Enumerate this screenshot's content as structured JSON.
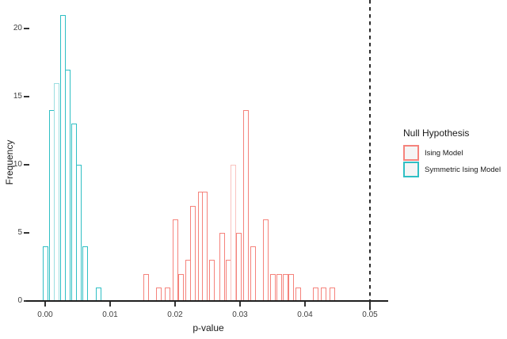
{
  "legend": {
    "title": "Null Hypothesis",
    "position": "right",
    "items": [
      {
        "label": "Ising Model",
        "swatch_border": "#F5837C",
        "swatch_fill": "#F5F5F5"
      },
      {
        "label": "Symmetric Ising Model",
        "swatch_border": "#2FBFC4",
        "swatch_fill": "#F5F5F5"
      }
    ]
  },
  "chart_data": {
    "type": "bar",
    "subtype": "histogram",
    "title": "",
    "xlabel": "p-value",
    "ylabel": "Frequency",
    "xlim": [
      -0.003,
      0.053
    ],
    "ylim": [
      0,
      21
    ],
    "grid": "off",
    "background": "#ffffff",
    "bar_fill": "#ffffff",
    "x_ticks": {
      "values": [
        0,
        0.01,
        0.02,
        0.03,
        0.04,
        0.05
      ],
      "labels": [
        "0.00",
        "0.01",
        "0.02",
        "0.03",
        "0.04",
        "0.05"
      ]
    },
    "y_ticks": {
      "values": [
        0,
        5,
        10,
        15,
        20
      ],
      "labels": [
        "0",
        "5",
        "10",
        "15",
        "20"
      ]
    },
    "reference_line": {
      "x": 0.05,
      "style": "dashed",
      "color": "#2B2B2B"
    },
    "series": [
      {
        "name": "Symmetric Ising Model",
        "outline_color": "#2FBFC4",
        "light_outline_color": "#9BDEE1",
        "total_count": 100,
        "bins": [
          {
            "x": 0.0,
            "f": 4
          },
          {
            "x": 0.001,
            "f": 14
          },
          {
            "x": 0.0018,
            "f": 16,
            "light": true
          },
          {
            "x": 0.0027,
            "f": 21
          },
          {
            "x": 0.0035,
            "f": 17
          },
          {
            "x": 0.0044,
            "f": 13
          },
          {
            "x": 0.0052,
            "f": 10
          },
          {
            "x": 0.0061,
            "f": 4
          },
          {
            "x": 0.0082,
            "f": 1
          }
        ]
      },
      {
        "name": "Ising Model",
        "outline_color": "#F5837C",
        "light_outline_color": "#F9C3BF",
        "total_count": 100,
        "bins": [
          {
            "x": 0.0156,
            "f": 2
          },
          {
            "x": 0.0175,
            "f": 1
          },
          {
            "x": 0.0188,
            "f": 1
          },
          {
            "x": 0.02,
            "f": 6
          },
          {
            "x": 0.0209,
            "f": 2
          },
          {
            "x": 0.022,
            "f": 3
          },
          {
            "x": 0.0227,
            "f": 7
          },
          {
            "x": 0.0239,
            "f": 8
          },
          {
            "x": 0.0246,
            "f": 8
          },
          {
            "x": 0.0257,
            "f": 3
          },
          {
            "x": 0.0272,
            "f": 5
          },
          {
            "x": 0.0282,
            "f": 3
          },
          {
            "x": 0.029,
            "f": 10,
            "light": true
          },
          {
            "x": 0.0298,
            "f": 5
          },
          {
            "x": 0.0309,
            "f": 14
          },
          {
            "x": 0.032,
            "f": 4
          },
          {
            "x": 0.034,
            "f": 6
          },
          {
            "x": 0.035,
            "f": 2
          },
          {
            "x": 0.036,
            "f": 2
          },
          {
            "x": 0.037,
            "f": 2
          },
          {
            "x": 0.0379,
            "f": 2
          },
          {
            "x": 0.0389,
            "f": 1
          },
          {
            "x": 0.0416,
            "f": 1
          },
          {
            "x": 0.0429,
            "f": 1
          },
          {
            "x": 0.0442,
            "f": 1
          }
        ]
      }
    ]
  }
}
